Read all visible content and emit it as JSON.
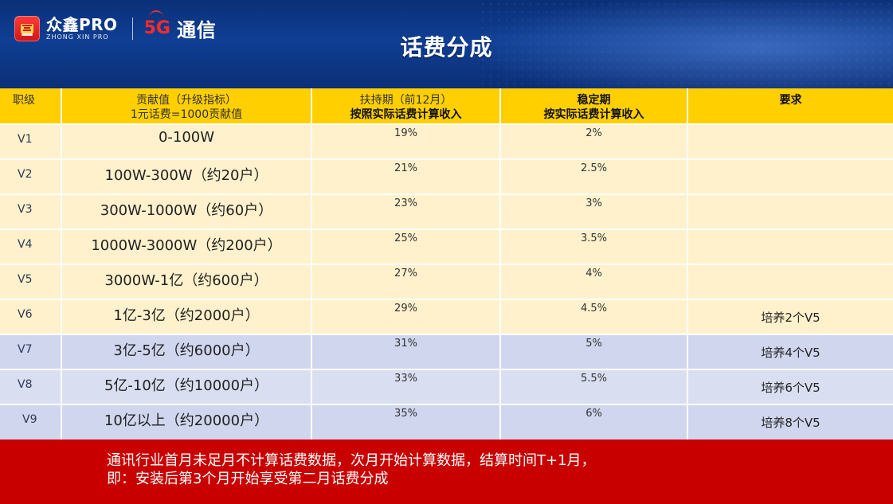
{
  "header": {
    "logo_main": "众鑫PRO",
    "logo_sub": "ZHONG XIN PRO",
    "brand_5g": "5G",
    "brand_text": "通信",
    "title": "话费分成"
  },
  "table": {
    "columns": [
      {
        "key": "level",
        "label_lines": [
          "职级"
        ]
      },
      {
        "key": "contribution",
        "label_lines": [
          "贡献值（升级指标）",
          "1元话费=1000贡献值"
        ]
      },
      {
        "key": "support",
        "label_lines": [
          "扶持期（前12月）",
          "按照实际话费计算收入"
        ]
      },
      {
        "key": "stable",
        "label_lines": [
          "稳定期",
          "按实际话费计算收入"
        ]
      },
      {
        "key": "requirement",
        "label_lines": [
          "要求"
        ]
      }
    ],
    "rows": [
      {
        "level": "V1",
        "contribution": "0-100W",
        "support": "19%",
        "stable": "2%",
        "requirement": ""
      },
      {
        "level": "V2",
        "contribution": "100W-300W（约20户）",
        "support": "21%",
        "stable": "2.5%",
        "requirement": ""
      },
      {
        "level": "V3",
        "contribution": "300W-1000W（约60户）",
        "support": "23%",
        "stable": "3%",
        "requirement": ""
      },
      {
        "level": "V4",
        "contribution": "1000W-3000W（约200户）",
        "support": "25%",
        "stable": "3.5%",
        "requirement": ""
      },
      {
        "level": "V5",
        "contribution": "3000W-1亿（约600户）",
        "support": "27%",
        "stable": "4%",
        "requirement": ""
      },
      {
        "level": "V6",
        "contribution": "1亿-3亿（约2000户）",
        "support": "29%",
        "stable": "4.5%",
        "requirement": "培养2个V5"
      },
      {
        "level": "V7",
        "contribution": "3亿-5亿（约6000户）",
        "support": "31%",
        "stable": "5%",
        "requirement": "培养4个V5"
      },
      {
        "level": "V8",
        "contribution": "5亿-10亿（约10000户）",
        "support": "33%",
        "stable": "5.5%",
        "requirement": "培养6个V5"
      },
      {
        "level": "V9",
        "contribution": "10亿以上（约20000户）",
        "support": "35%",
        "stable": "6%",
        "requirement": "培养8个V5"
      }
    ]
  },
  "footer": {
    "note_line1": "通讯行业首月未足月不计算话费数据，次月开始计算数据，结算时间T+1月，",
    "note_line2": "即：安装后第3个月开始享受第二月话费分成"
  },
  "colors": {
    "header_bg": "#0f3e93",
    "table_header": "#ffcf00",
    "row_cream": "#fff1cc",
    "row_blue": "#cfd6ee",
    "footer_red": "#c80000",
    "brand_red": "#ff2b2b"
  }
}
